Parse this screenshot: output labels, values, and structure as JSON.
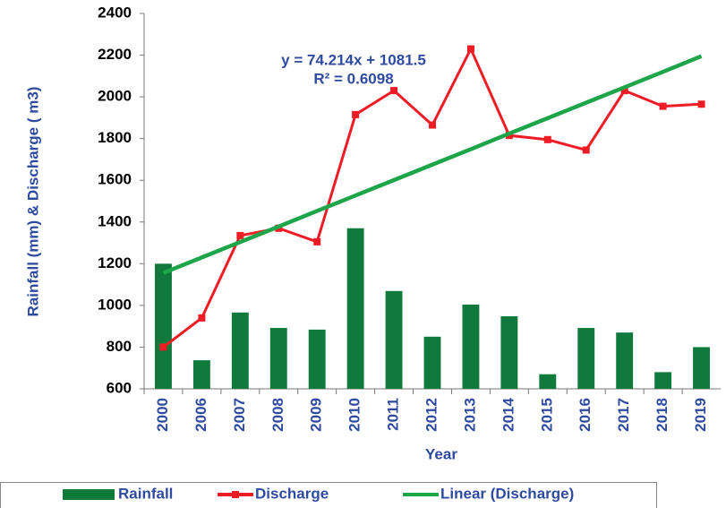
{
  "chart_data": {
    "type": "bar",
    "y_label": "Rainfall (mm) & Discharge ( m3)",
    "x_label": "Year",
    "annotations": [
      "y = 74.214x + 1081.5",
      "R² = 0.6098"
    ],
    "categories": [
      "2000",
      "2006",
      "2007",
      "2008",
      "2009",
      "2010",
      "2011",
      "2012",
      "2013",
      "2014",
      "2015",
      "2016",
      "2017",
      "2018",
      "2019"
    ],
    "series": [
      {
        "name": "Rainfall",
        "type": "bar",
        "color": "#0f7a3c",
        "values": [
          1200,
          737,
          966,
          892,
          884,
          1370,
          1069,
          850,
          1004,
          948,
          670,
          892,
          870,
          680,
          800
        ]
      },
      {
        "name": "Discharge",
        "type": "line",
        "marker": true,
        "color": "#ee1c25",
        "values": [
          800,
          940,
          1335,
          1370,
          1305,
          1915,
          2030,
          1865,
          2230,
          1815,
          1795,
          1745,
          2030,
          1955,
          1965
        ]
      },
      {
        "name": "Linear (Discharge)",
        "type": "line",
        "marker": false,
        "color": "#1ea54a",
        "values": [
          1156,
          1230,
          1304,
          1378,
          1453,
          1527,
          1601,
          1675,
          1749,
          1824,
          1898,
          1972,
          2046,
          2120,
          2195
        ]
      }
    ],
    "ylim": [
      600,
      2400
    ],
    "yticks": [
      600,
      800,
      1000,
      1200,
      1400,
      1600,
      1800,
      2000,
      2200,
      2400
    ],
    "legend": "bottom"
  }
}
